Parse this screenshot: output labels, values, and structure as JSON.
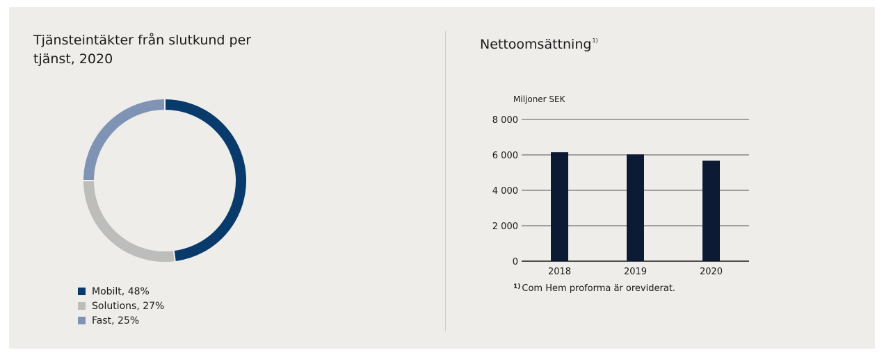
{
  "colors": {
    "background": "#efedea",
    "mobilt": "#083a6b",
    "solutions": "#bdbdbb",
    "fast": "#7f93b5",
    "bar": "#0c1a33"
  },
  "chart_data": [
    {
      "type": "pie",
      "title": "Tjänsteintäkter från slutkund per tjänst, 2020",
      "subtype": "donut",
      "legend_position": "bottom-left",
      "slices": [
        {
          "label": "Mobilt, 48%",
          "value": 48,
          "color": "#083a6b"
        },
        {
          "label": "Solutions, 27%",
          "value": 27,
          "color": "#bdbdbb"
        },
        {
          "label": "Fast, 25%",
          "value": 25,
          "color": "#7f93b5"
        }
      ]
    },
    {
      "type": "bar",
      "title": "Nettoomsättning",
      "title_footnote_marker": "1)",
      "ylabel": "Miljoner SEK",
      "categories": [
        "2018",
        "2019",
        "2020"
      ],
      "values": [
        6150,
        6030,
        5670
      ],
      "ylim": [
        0,
        8000
      ],
      "yticks": [
        0,
        2000,
        4000,
        6000,
        8000
      ],
      "ytick_labels": [
        "0",
        "2 000",
        "4 000",
        "6 000",
        "8 000"
      ],
      "grid": true,
      "footnote": {
        "marker": "1)",
        "text": "Com Hem proforma är oreviderat."
      }
    }
  ]
}
